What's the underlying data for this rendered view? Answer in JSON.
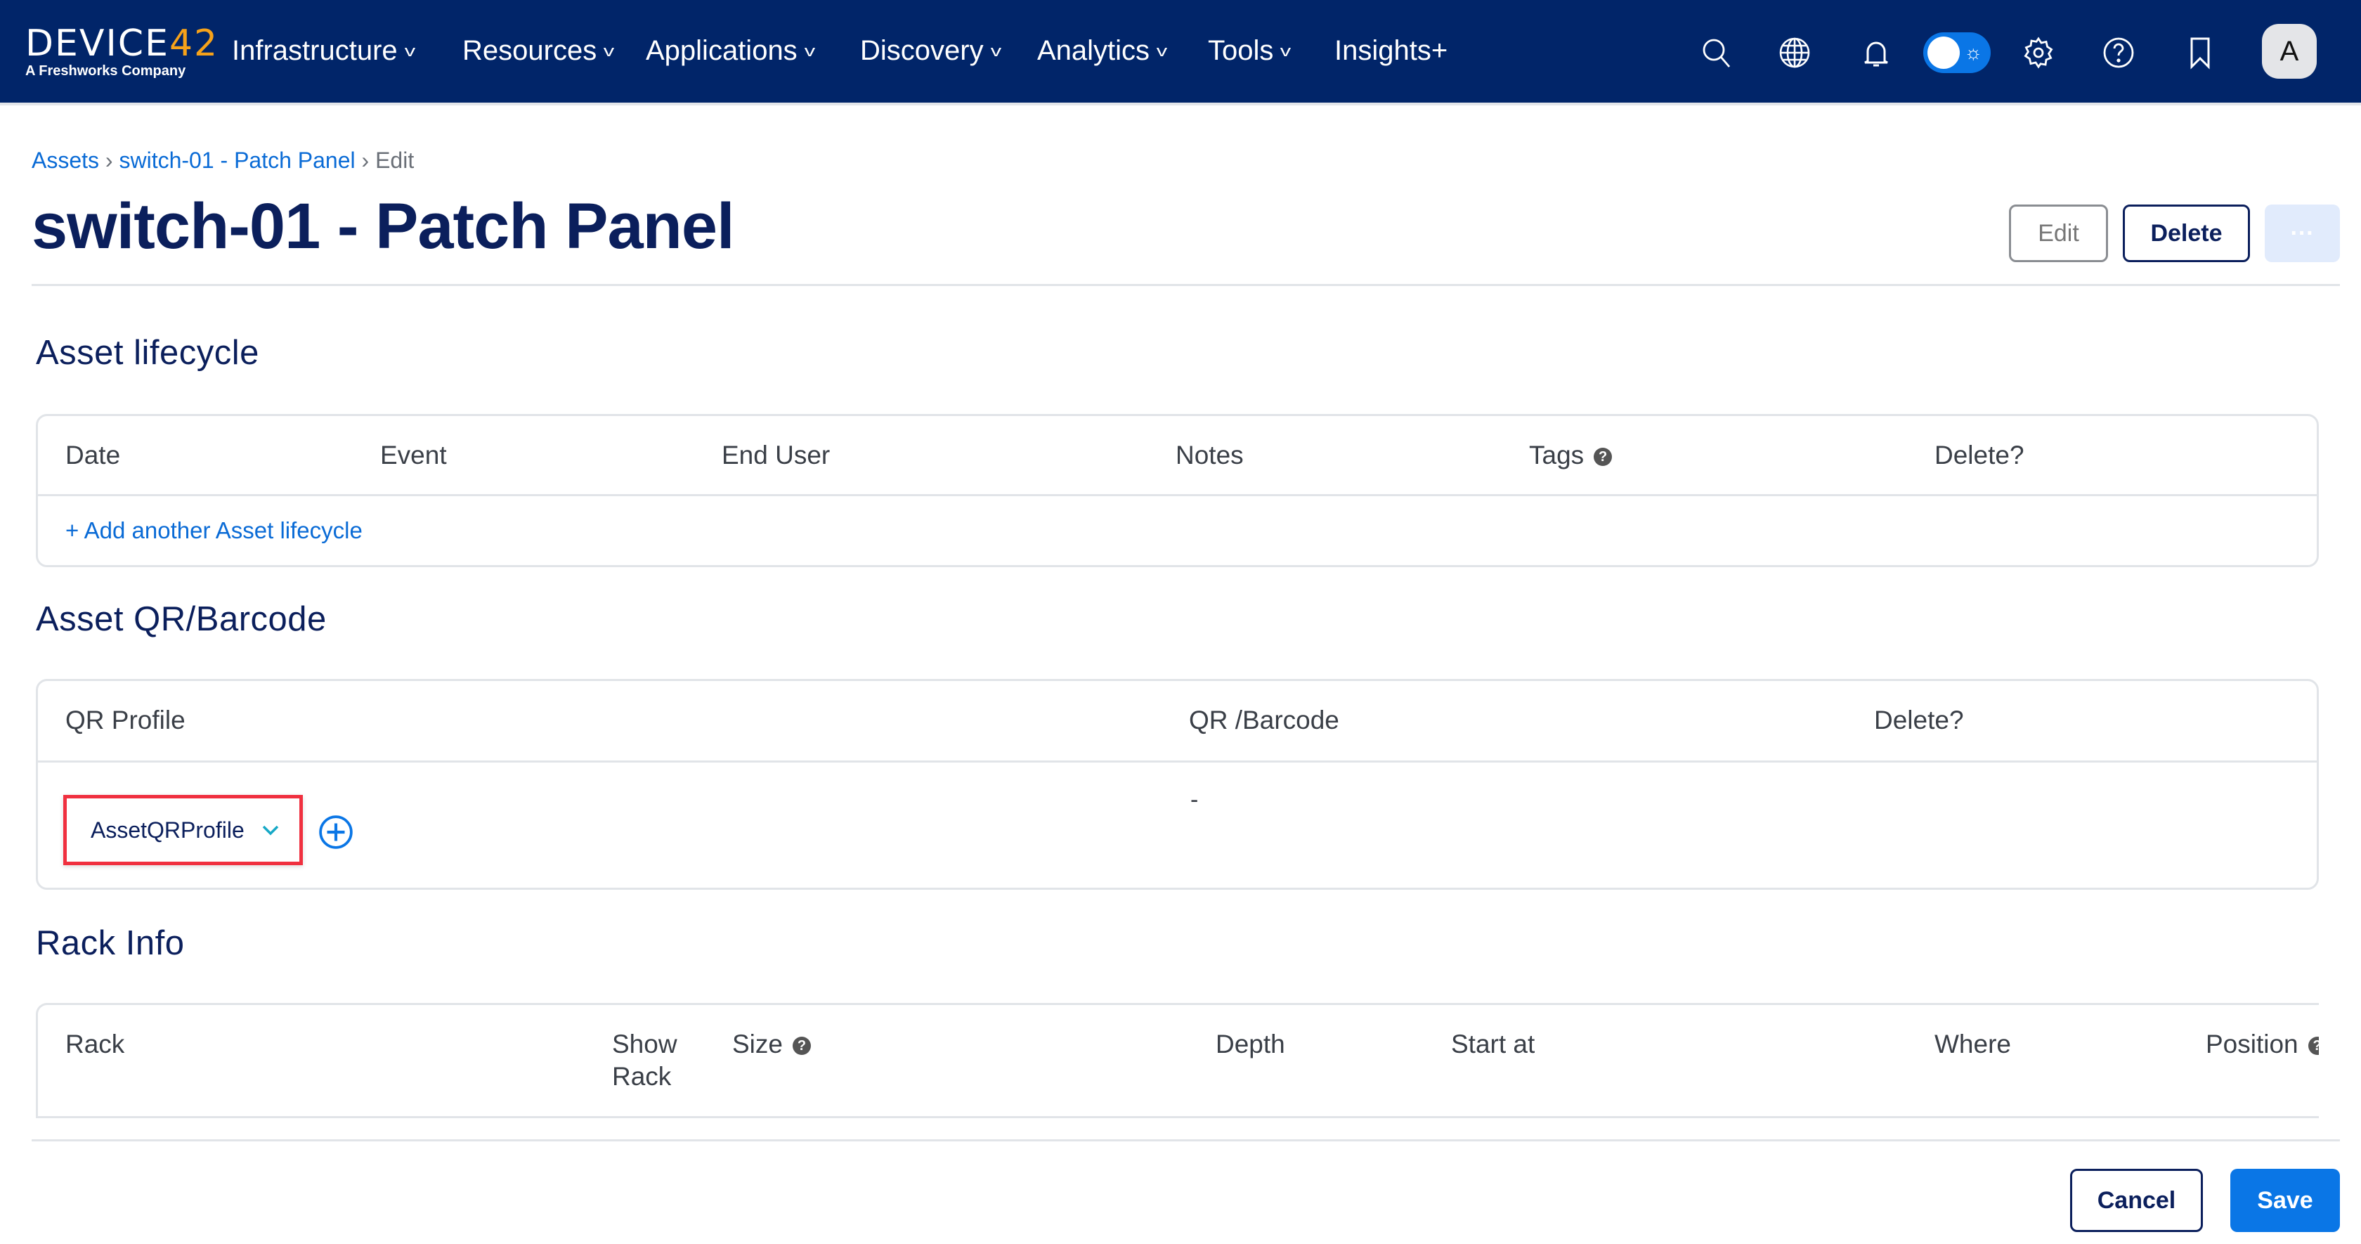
{
  "nav": {
    "logo": {
      "text_main": "DEVICE",
      "text_accent": "42",
      "tagline": "A Freshworks Company"
    },
    "items": [
      {
        "label": "Infrastructure",
        "has_dropdown": true
      },
      {
        "label": "Resources",
        "has_dropdown": true
      },
      {
        "label": "Applications",
        "has_dropdown": true
      },
      {
        "label": "Discovery",
        "has_dropdown": true
      },
      {
        "label": "Analytics",
        "has_dropdown": true
      },
      {
        "label": "Tools",
        "has_dropdown": true
      },
      {
        "label": "Insights+",
        "has_dropdown": false
      }
    ],
    "icons": [
      "search-icon",
      "globe-icon",
      "bell-icon",
      "theme-toggle",
      "gear-icon",
      "help-icon",
      "bookmark-icon"
    ],
    "theme_toggle_on": true,
    "avatar": "A",
    "bg_color": "#012569"
  },
  "breadcrumb": {
    "items": [
      "Assets",
      "switch-01 - Patch Panel"
    ],
    "current": "Edit",
    "separator": "›"
  },
  "page": {
    "title": "switch-01 - Patch Panel"
  },
  "actions": {
    "edit": "Edit",
    "delete": "Delete",
    "more": "···"
  },
  "lifecycle": {
    "title": "Asset lifecycle",
    "columns": [
      "Date",
      "Event",
      "End User",
      "Notes",
      "Tags",
      "Delete?"
    ],
    "add_link": "+ Add another Asset lifecycle"
  },
  "qr": {
    "title": "Asset QR/Barcode",
    "columns": [
      "QR Profile",
      "QR /Barcode",
      "Delete?"
    ],
    "row": {
      "profile": "AssetQRProfile",
      "barcode": "-"
    }
  },
  "rack": {
    "title": "Rack Info",
    "columns": [
      "Rack",
      "Show Rack",
      "Size",
      "Depth",
      "Start at",
      "Where",
      "Position"
    ]
  },
  "footer": {
    "cancel": "Cancel",
    "save": "Save"
  },
  "colors": {
    "primary": "#0a76e6",
    "navy": "#0b1f5c",
    "highlight": "#f0303f"
  }
}
